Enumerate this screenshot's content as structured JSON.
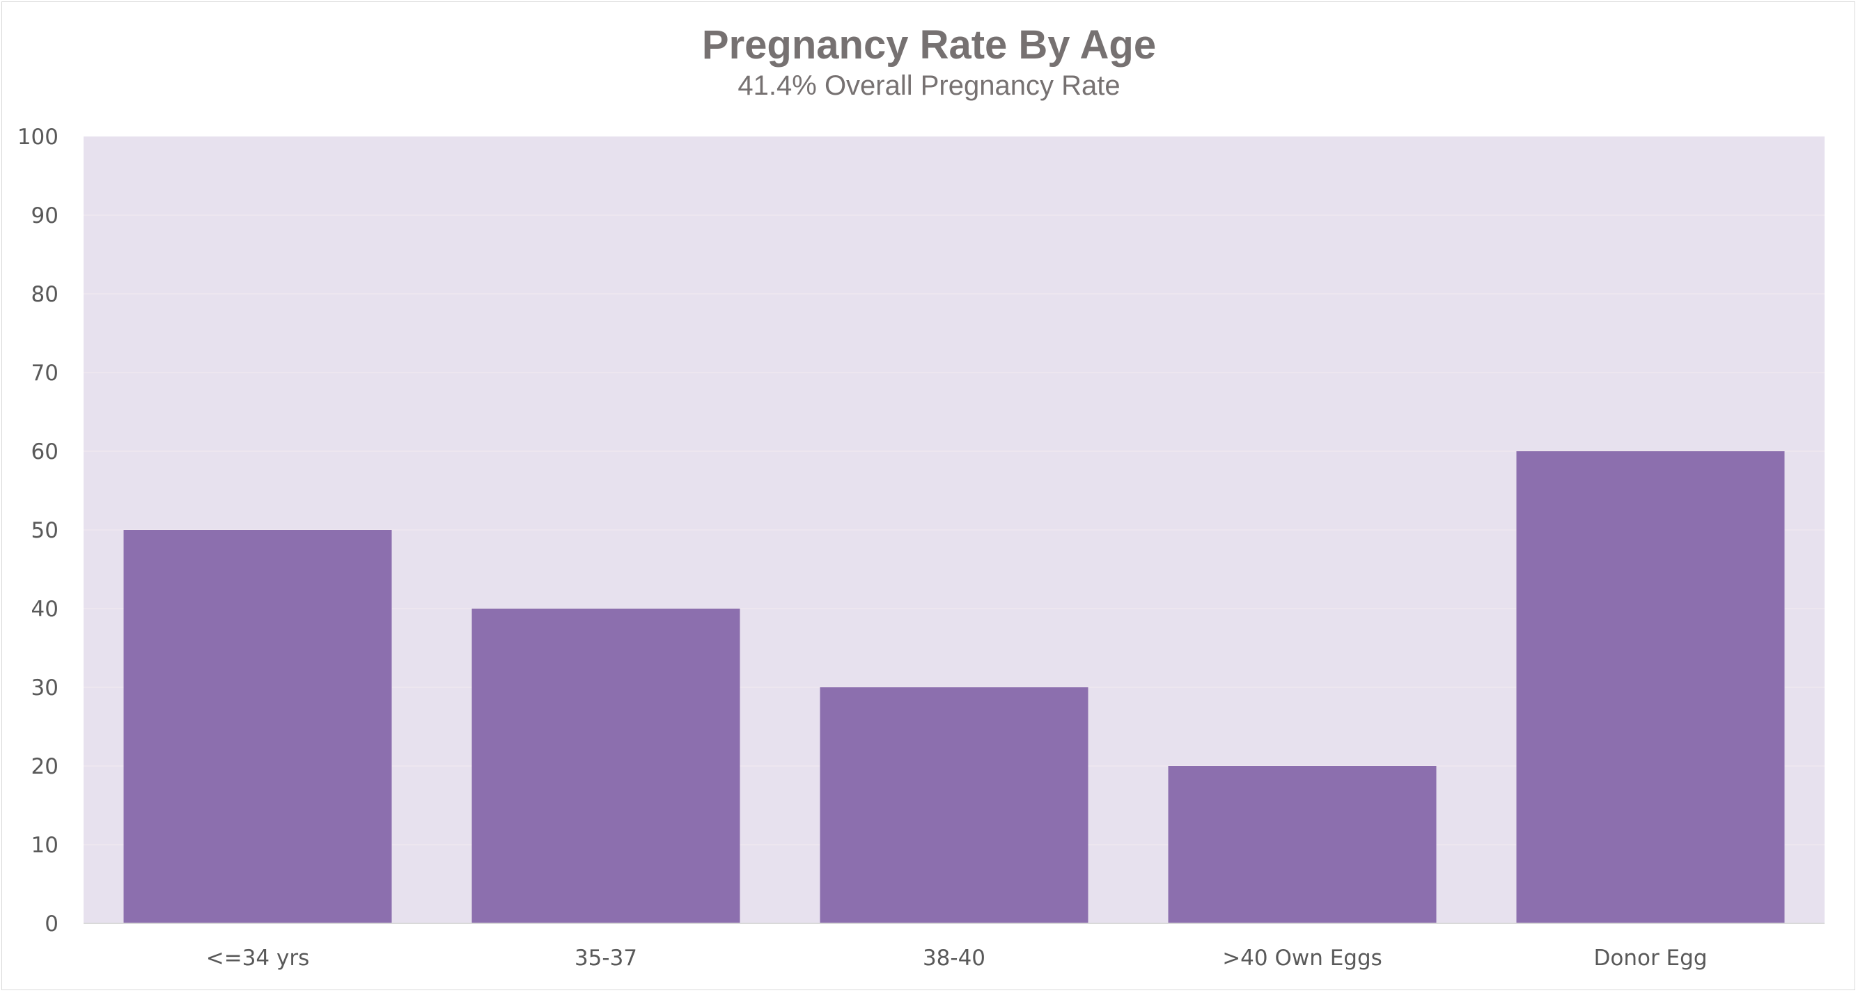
{
  "chart_data": {
    "type": "bar",
    "title": "Pregnancy Rate By Age",
    "subtitle": "41.4% Overall Pregnancy Rate",
    "categories": [
      "<=34 yrs",
      "35-37",
      "38-40",
      ">40 Own Eggs",
      "Donor Egg"
    ],
    "values": [
      50,
      40,
      30,
      20,
      60
    ],
    "xlabel": "",
    "ylabel": "",
    "ylim": [
      0,
      100
    ],
    "yticks": [
      "0",
      "10",
      "20",
      "30",
      "40",
      "50",
      "60",
      "70",
      "80",
      "90",
      "100"
    ],
    "grid": true,
    "legend": "none",
    "colors": {
      "bar": "#8c6fae",
      "plot_background": "#e7e1ee",
      "gridline": "#ede6ef",
      "text": "#767171",
      "axis_text": "#595959",
      "axis_line": "#d9d9d9"
    }
  }
}
